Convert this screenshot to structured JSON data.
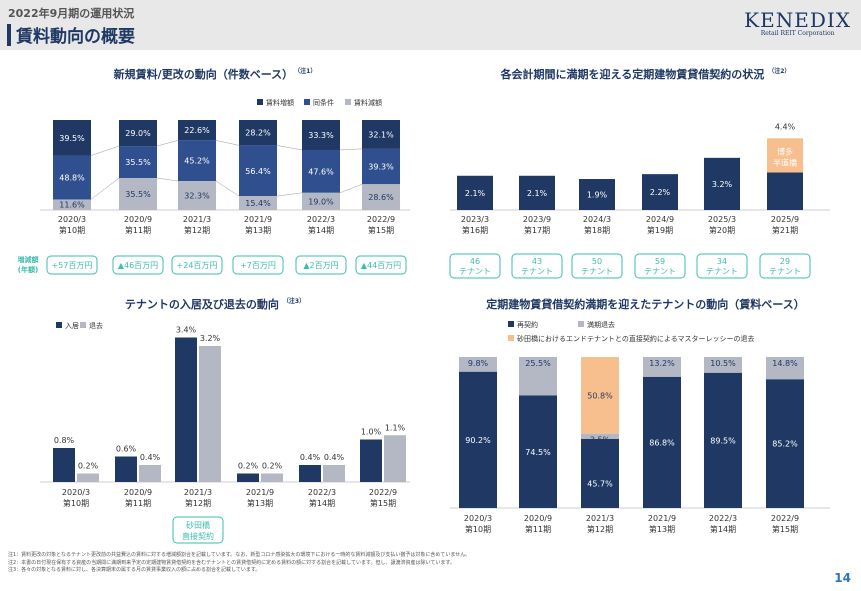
{
  "header": {
    "subtitle": "2022年9月期の運用状況",
    "title": "賃料動向の概要",
    "logo": "KENEDIX",
    "logo_sub": "Retail REIT Corporation"
  },
  "colors": {
    "navy": "#1f3864",
    "mid": "#2f4f8f",
    "gray": "#b4b7c4",
    "orange": "#f8bf8e",
    "teal": "#3dbdb0"
  },
  "chart_data": [
    {
      "type": "bar",
      "stacked": true,
      "title": "新規賃料/更改の動向（件数ベース）",
      "note": "（注1）",
      "categories": [
        "2020/3",
        "2020/9",
        "2021/3",
        "2021/9",
        "2022/3",
        "2022/9"
      ],
      "periods": [
        "第10期",
        "第11期",
        "第12期",
        "第13期",
        "第14期",
        "第15期"
      ],
      "series": [
        {
          "name": "賃料増額",
          "values": [
            39.5,
            29.0,
            22.6,
            28.2,
            33.3,
            32.1
          ]
        },
        {
          "name": "同条件",
          "values": [
            48.8,
            35.5,
            45.2,
            56.4,
            47.6,
            39.3
          ]
        },
        {
          "name": "賃料減額",
          "values": [
            11.6,
            35.5,
            32.3,
            15.4,
            19.0,
            28.6
          ]
        }
      ],
      "labels": {
        "series0": [
          "39.5%",
          "29.0%",
          "22.6%",
          "28.2%",
          "33.3%",
          "32.1%"
        ],
        "series1": [
          "48.8%",
          "35.5%",
          "45.2%",
          "56.4%",
          "47.6%",
          "39.3%"
        ],
        "series2": [
          "11.6%",
          "35.5%",
          "32.3%",
          "15.4%",
          "19.0%",
          "28.6%"
        ]
      },
      "ylim": [
        0,
        100
      ],
      "delta_label": [
        "増減額",
        "(年額)"
      ],
      "deltas": [
        "+57百万円",
        "▲46百万円",
        "+24百万円",
        "+7百万円",
        "▲2百万円",
        "▲44百万円"
      ]
    },
    {
      "type": "bar",
      "title": "各会計期間に満期を迎える定期建物賃貸借契約の状況",
      "note": "（注2）",
      "categories": [
        "2023/3",
        "2023/9",
        "2024/3",
        "2024/9",
        "2025/3",
        "2025/9"
      ],
      "periods": [
        "第16期",
        "第17期",
        "第18期",
        "第19期",
        "第20期",
        "第21期"
      ],
      "series": [
        {
          "name": "定期建物賃貸借契約",
          "values": [
            2.1,
            2.1,
            1.9,
            2.2,
            3.2,
            2.3
          ]
        },
        {
          "name": "博多半道橋",
          "values": [
            0,
            0,
            0,
            0,
            0,
            2.1
          ]
        }
      ],
      "bar_labels": [
        "2.1%",
        "2.1%",
        "1.9%",
        "2.2%",
        "3.2%",
        ""
      ],
      "total_labels": [
        "",
        "",
        "",
        "",
        "",
        "4.4%"
      ],
      "highlight_labels": [
        "博多",
        "半道橋"
      ],
      "ylim": [
        0,
        5
      ],
      "tenants": [
        [
          "46",
          "テナント"
        ],
        [
          "43",
          "テナント"
        ],
        [
          "50",
          "テナント"
        ],
        [
          "59",
          "テナント"
        ],
        [
          "34",
          "テナント"
        ],
        [
          "29",
          "テナント"
        ]
      ]
    },
    {
      "type": "bar",
      "grouped": true,
      "title": "テナントの入居及び退去の動向",
      "note": "（注3）",
      "categories": [
        "2020/3",
        "2020/9",
        "2021/3",
        "2021/9",
        "2022/3",
        "2022/9"
      ],
      "periods": [
        "第10期",
        "第11期",
        "第12期",
        "第13期",
        "第14期",
        "第15期"
      ],
      "series": [
        {
          "name": "入居",
          "values": [
            0.8,
            0.6,
            3.4,
            0.2,
            0.4,
            1.0
          ]
        },
        {
          "name": "退去",
          "values": [
            0.2,
            0.4,
            3.2,
            0.2,
            0.4,
            1.1
          ]
        }
      ],
      "labels": {
        "series0": [
          "0.8%",
          "0.6%",
          "3.4%",
          "0.2%",
          "0.4%",
          "1.0%"
        ],
        "series1": [
          "0.2%",
          "0.4%",
          "3.2%",
          "0.2%",
          "0.4%",
          "1.1%"
        ]
      },
      "ylim": [
        0,
        3.6
      ],
      "callout": [
        "砂田橋",
        "直接契約"
      ]
    },
    {
      "type": "bar",
      "stacked": true,
      "title": "定期建物賃貸借契約満期を迎えたテナントの動向（賃料ベース）",
      "categories": [
        "2020/3",
        "2020/9",
        "2021/3",
        "2021/9",
        "2022/3",
        "2022/9"
      ],
      "periods": [
        "第10期",
        "第11期",
        "第12期",
        "第13期",
        "第14期",
        "第15期"
      ],
      "series": [
        {
          "name": "再契約",
          "values": [
            90.2,
            74.5,
            45.7,
            86.8,
            89.5,
            85.2
          ]
        },
        {
          "name": "満期退去",
          "values": [
            9.8,
            25.5,
            3.5,
            13.2,
            10.5,
            14.8
          ]
        },
        {
          "name": "砂田橋におけるエンドテナントとの直接契約によるマスターレッシーの退去",
          "values": [
            0,
            0,
            50.8,
            0,
            0,
            0
          ]
        }
      ],
      "labels": {
        "series0": [
          "90.2%",
          "74.5%",
          "45.7%",
          "86.8%",
          "89.5%",
          "85.2%"
        ],
        "series1": [
          "9.8%",
          "25.5%",
          "3.5%",
          "13.2%",
          "10.5%",
          "14.8%"
        ],
        "series2": [
          "",
          "",
          "50.8%",
          "",
          "",
          ""
        ]
      },
      "ylim": [
        0,
        100
      ]
    }
  ],
  "notes": [
    "注1：賃料更改の対象となるテナント更改前の共益費込の賃料に対する増減額割合を記載しています。なお、新型コロナ感染拡大の環境下における一時的な賃料減額及び支払い猶予は対象に含めていません。",
    "注2：本書の日付現在保有する資産の当期間に満期到来予定の定期建物賃貸借契約を含むテナントとの賃貸借契約に定める賃料の額に対する割合を記載しています。但し、譲渡済資産は除いています。",
    "注3：各々の対象となる賃料に対し、各決算期末の属する月の賃貸事業収入の額に占める割合を記載しています。"
  ],
  "page_number": "14"
}
